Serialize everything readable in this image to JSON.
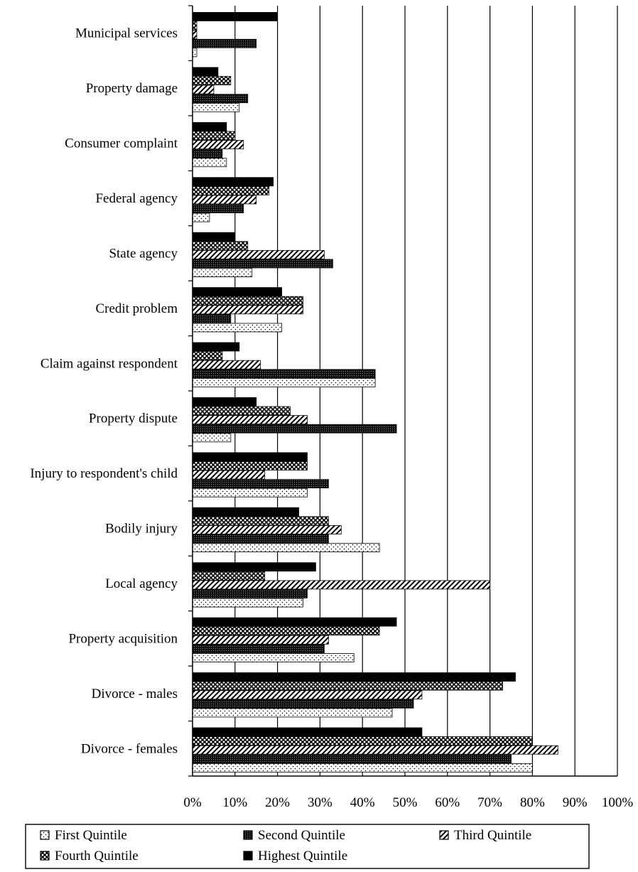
{
  "chart_data": {
    "type": "bar",
    "orientation": "horizontal",
    "categories": [
      "Municipal services",
      "Property damage",
      "Consumer complaint",
      "Federal agency",
      "State agency",
      "Credit problem",
      "Claim against respondent",
      "Property dispute",
      "Injury to respondent's child",
      "Bodily injury",
      "Local agency",
      "Property acquisition",
      "Divorce - males",
      "Divorce - females"
    ],
    "series": [
      {
        "name": "First Quintile",
        "pattern": "dots",
        "values": [
          1,
          11,
          8,
          4,
          14,
          21,
          43,
          9,
          27,
          44,
          26,
          38,
          47,
          80
        ]
      },
      {
        "name": "Second Quintile",
        "pattern": "dense",
        "values": [
          15,
          13,
          7,
          12,
          33,
          9,
          43,
          48,
          32,
          32,
          27,
          31,
          52,
          75
        ]
      },
      {
        "name": "Third Quintile",
        "pattern": "diagonal",
        "values": [
          1,
          5,
          12,
          15,
          31,
          26,
          16,
          27,
          17,
          35,
          70,
          32,
          54,
          86
        ]
      },
      {
        "name": "Fourth Quintile",
        "pattern": "cross",
        "values": [
          1,
          9,
          10,
          18,
          13,
          26,
          7,
          23,
          27,
          32,
          17,
          44,
          73,
          80
        ]
      },
      {
        "name": "Highest Quintile",
        "pattern": "solid",
        "values": [
          20,
          6,
          8,
          19,
          10,
          21,
          11,
          15,
          27,
          25,
          29,
          48,
          76,
          54
        ]
      }
    ],
    "xlim": [
      0,
      100
    ],
    "xticks": [
      "0%",
      "10%",
      "20%",
      "30%",
      "40%",
      "50%",
      "60%",
      "70%",
      "80%",
      "90%",
      "100%"
    ],
    "grid": "vertical",
    "legend": "bottom"
  }
}
